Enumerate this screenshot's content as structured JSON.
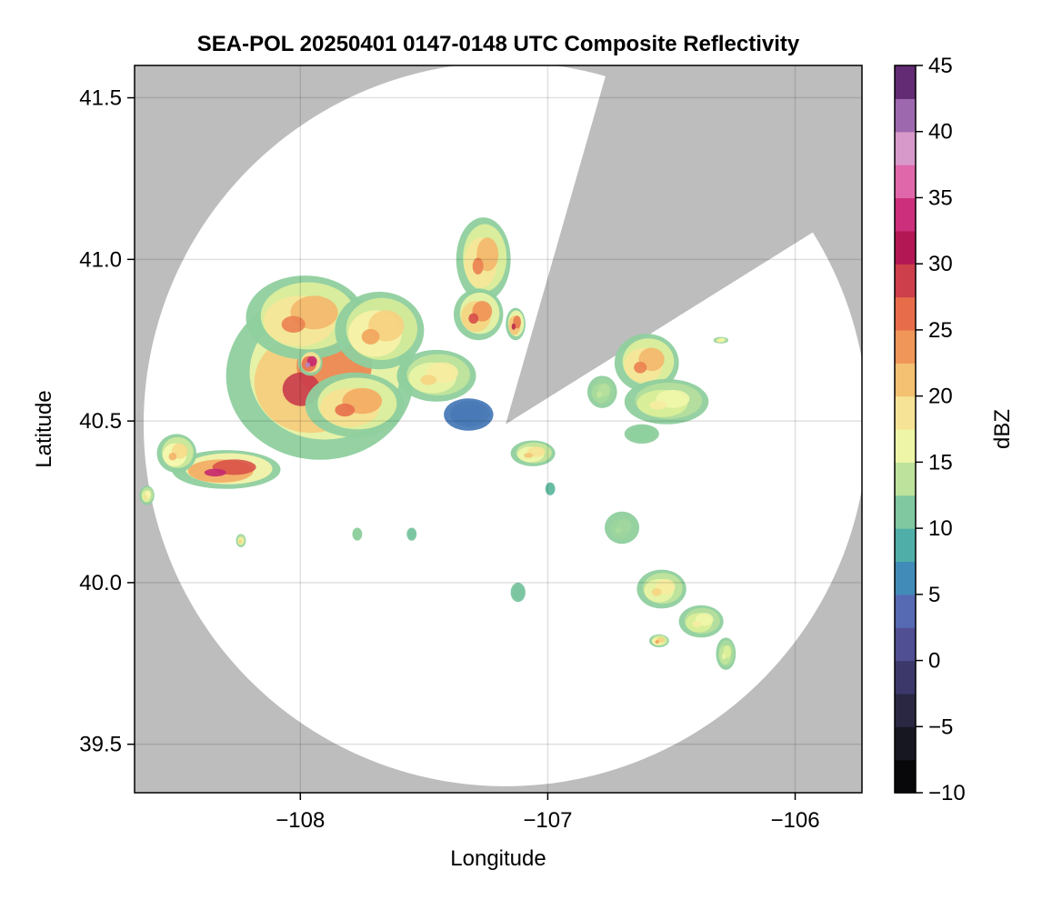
{
  "chart_data": {
    "type": "heatmap",
    "title": "SEA-POL 20250401 0147-0148 UTC Composite Reflectivity",
    "xlabel": "Longitude",
    "ylabel": "Latitude",
    "xlim": [
      -108.67,
      -105.73
    ],
    "ylim": [
      39.35,
      41.6
    ],
    "x_ticks": [
      -108,
      -107,
      -106
    ],
    "x_tick_labels": [
      "−108",
      "−107",
      "−106"
    ],
    "y_ticks": [
      39.5,
      40.0,
      40.5,
      41.0,
      41.5
    ],
    "y_tick_labels": [
      "39.5",
      "40.0",
      "40.5",
      "41.0",
      "41.5"
    ],
    "grid": true,
    "background_color": "#bdbdbd",
    "coverage_color": "#ffffff",
    "radar": {
      "center": [
        -107.17,
        40.49
      ],
      "radius_deg_lat": 1.12,
      "blocked_sectors_deg_from_north": [
        [
          16,
          58
        ]
      ]
    },
    "colorbar": {
      "label": "dBZ",
      "min": -10,
      "max": 45,
      "step": 2.5,
      "ticks": [
        -10,
        -5,
        0,
        5,
        10,
        15,
        20,
        25,
        30,
        35,
        40,
        45
      ],
      "tick_labels": [
        "−10",
        "−5",
        "0",
        "5",
        "10",
        "15",
        "20",
        "25",
        "30",
        "35",
        "40",
        "45"
      ],
      "colormap": "spectral-extended",
      "stops": [
        {
          "v": -10,
          "c": "#000000"
        },
        {
          "v": -5,
          "c": "#1f1e2c"
        },
        {
          "v": -1,
          "c": "#3e3a6e"
        },
        {
          "v": 3,
          "c": "#5e5fb0"
        },
        {
          "v": 6,
          "c": "#3f87bb"
        },
        {
          "v": 9,
          "c": "#52b2a6"
        },
        {
          "v": 12,
          "c": "#8fcf9e"
        },
        {
          "v": 15,
          "c": "#dcef99"
        },
        {
          "v": 17,
          "c": "#f8f8b0"
        },
        {
          "v": 20,
          "c": "#f6d482"
        },
        {
          "v": 23,
          "c": "#f2a35c"
        },
        {
          "v": 27,
          "c": "#e45f46"
        },
        {
          "v": 31,
          "c": "#b01650"
        },
        {
          "v": 35,
          "c": "#d93b8f"
        },
        {
          "v": 38,
          "c": "#eaa4cf"
        },
        {
          "v": 40,
          "c": "#b685c2"
        },
        {
          "v": 43,
          "c": "#7a3f8f"
        },
        {
          "v": 45,
          "c": "#3a0a45"
        }
      ]
    },
    "echo_cells": [
      {
        "lon": -107.92,
        "lat": 40.64,
        "rx": 0.38,
        "ry": 0.26,
        "peak": 29
      },
      {
        "lon": -107.98,
        "lat": 40.82,
        "rx": 0.24,
        "ry": 0.13,
        "peak": 25
      },
      {
        "lon": -107.68,
        "lat": 40.78,
        "rx": 0.18,
        "ry": 0.12,
        "peak": 23
      },
      {
        "lon": -107.78,
        "lat": 40.55,
        "rx": 0.2,
        "ry": 0.1,
        "peak": 26
      },
      {
        "lon": -107.45,
        "lat": 40.64,
        "rx": 0.16,
        "ry": 0.08,
        "peak": 20
      },
      {
        "lon": -107.32,
        "lat": 40.52,
        "rx": 0.1,
        "ry": 0.05,
        "peak": 5
      },
      {
        "lon": -107.96,
        "lat": 40.68,
        "rx": 0.05,
        "ry": 0.04,
        "peak": 40
      },
      {
        "lon": -108.3,
        "lat": 40.35,
        "rx": 0.22,
        "ry": 0.06,
        "peak": 33
      },
      {
        "lon": -108.5,
        "lat": 40.4,
        "rx": 0.08,
        "ry": 0.06,
        "peak": 22
      },
      {
        "lon": -107.26,
        "lat": 41.0,
        "rx": 0.11,
        "ry": 0.13,
        "peak": 25
      },
      {
        "lon": -107.28,
        "lat": 40.83,
        "rx": 0.1,
        "ry": 0.08,
        "peak": 28
      },
      {
        "lon": -107.13,
        "lat": 40.8,
        "rx": 0.04,
        "ry": 0.05,
        "peak": 30
      },
      {
        "lon": -106.6,
        "lat": 40.68,
        "rx": 0.13,
        "ry": 0.09,
        "peak": 25
      },
      {
        "lon": -106.52,
        "lat": 40.56,
        "rx": 0.17,
        "ry": 0.07,
        "peak": 18
      },
      {
        "lon": -106.78,
        "lat": 40.59,
        "rx": 0.06,
        "ry": 0.05,
        "peak": 14
      },
      {
        "lon": -107.06,
        "lat": 40.4,
        "rx": 0.09,
        "ry": 0.04,
        "peak": 21
      },
      {
        "lon": -106.62,
        "lat": 40.46,
        "rx": 0.07,
        "ry": 0.03,
        "peak": 12
      },
      {
        "lon": -106.7,
        "lat": 40.17,
        "rx": 0.07,
        "ry": 0.05,
        "peak": 13
      },
      {
        "lon": -106.54,
        "lat": 39.98,
        "rx": 0.1,
        "ry": 0.06,
        "peak": 20
      },
      {
        "lon": -106.38,
        "lat": 39.88,
        "rx": 0.09,
        "ry": 0.05,
        "peak": 18
      },
      {
        "lon": -106.55,
        "lat": 39.82,
        "rx": 0.04,
        "ry": 0.02,
        "peak": 23
      },
      {
        "lon": -106.28,
        "lat": 39.78,
        "rx": 0.04,
        "ry": 0.05,
        "peak": 16
      },
      {
        "lon": -107.12,
        "lat": 39.97,
        "rx": 0.03,
        "ry": 0.03,
        "peak": 11
      },
      {
        "lon": -107.77,
        "lat": 40.15,
        "rx": 0.02,
        "ry": 0.02,
        "peak": 12
      },
      {
        "lon": -107.55,
        "lat": 40.15,
        "rx": 0.02,
        "ry": 0.02,
        "peak": 11
      },
      {
        "lon": -108.24,
        "lat": 40.13,
        "rx": 0.02,
        "ry": 0.02,
        "peak": 20
      },
      {
        "lon": -108.62,
        "lat": 40.27,
        "rx": 0.03,
        "ry": 0.03,
        "peak": 19
      },
      {
        "lon": -106.3,
        "lat": 40.75,
        "rx": 0.03,
        "ry": 0.01,
        "peak": 18
      },
      {
        "lon": -106.99,
        "lat": 40.29,
        "rx": 0.02,
        "ry": 0.02,
        "peak": 10
      }
    ]
  }
}
